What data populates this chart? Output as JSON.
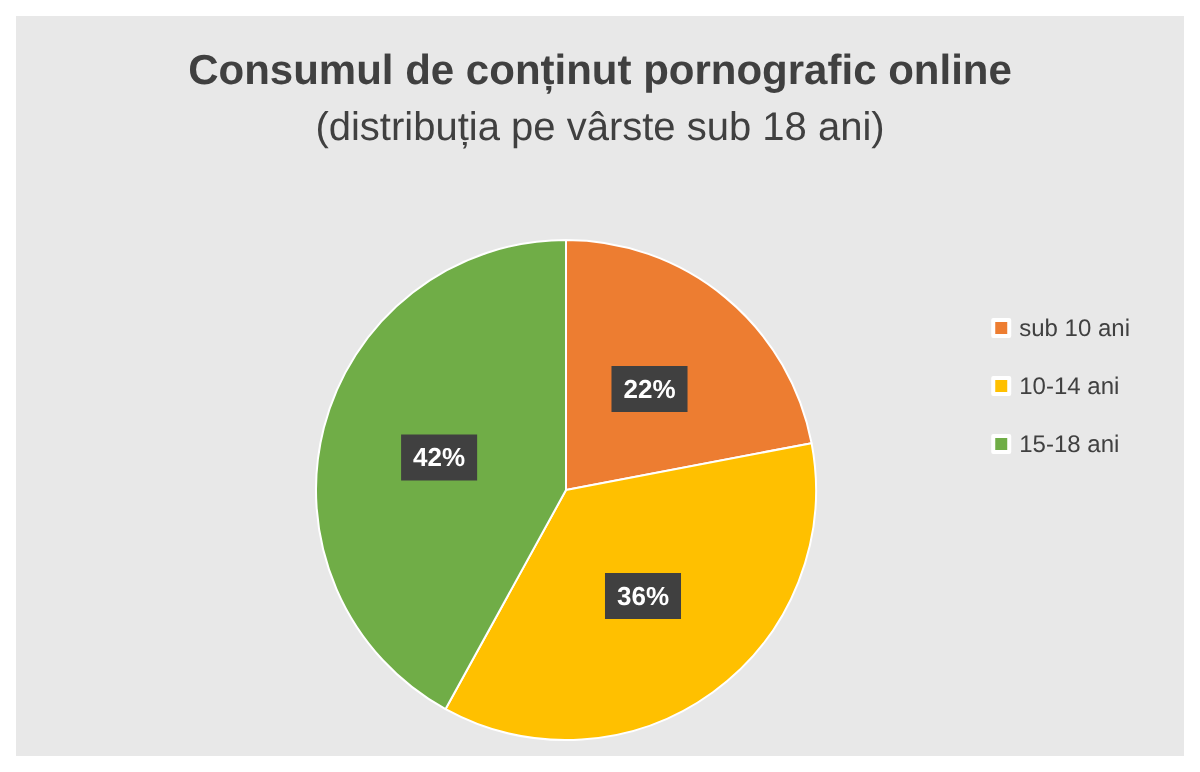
{
  "chart_data": {
    "type": "pie",
    "title": "Consumul de conținut pornografic online",
    "subtitle": "(distribuția pe vârste sub 18 ani)",
    "categories": [
      "sub 10 ani",
      "10-14 ani",
      "15-18 ani"
    ],
    "values": [
      22,
      36,
      42
    ],
    "colors": [
      "#ed7d31",
      "#ffc000",
      "#70ad47"
    ],
    "value_labels": [
      "22%",
      "36%",
      "42%"
    ],
    "legend": "right"
  }
}
